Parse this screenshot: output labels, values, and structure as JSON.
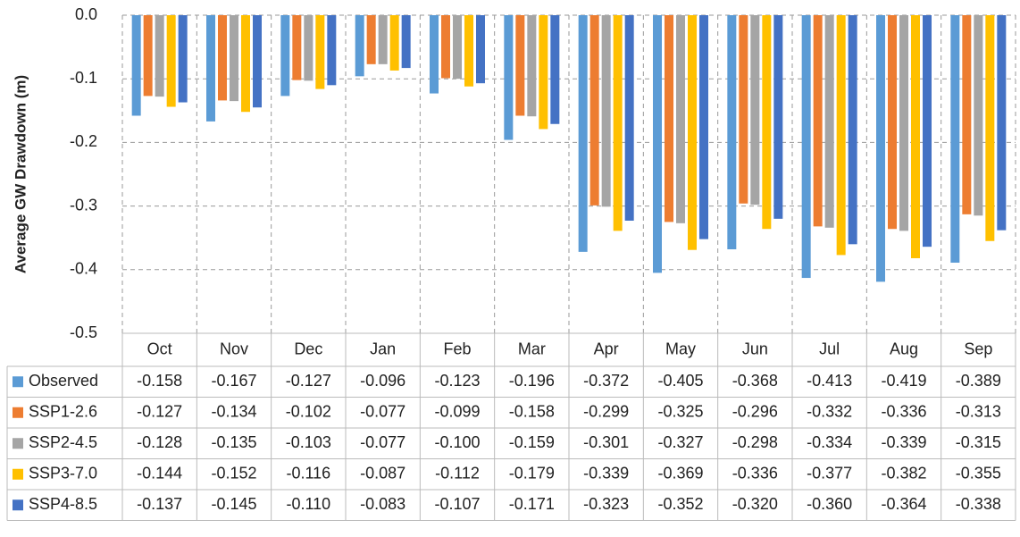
{
  "chart_data": {
    "type": "bar",
    "y_label": "Average GW Drawdown (m)",
    "categories": [
      "Oct",
      "Nov",
      "Dec",
      "Jan",
      "Feb",
      "Mar",
      "Apr",
      "May",
      "Jun",
      "Jul",
      "Aug",
      "Sep"
    ],
    "series": [
      {
        "name": "Observed",
        "color": "#5b9bd5",
        "values": [
          -0.158,
          -0.167,
          -0.127,
          -0.096,
          -0.123,
          -0.196,
          -0.372,
          -0.405,
          -0.368,
          -0.413,
          -0.419,
          -0.389
        ],
        "value_labels": [
          "-0.158",
          "-0.167",
          "-0.127",
          "-0.096",
          "-0.123",
          "-0.196",
          "-0.372",
          "-0.405",
          "-0.368",
          "-0.413",
          "-0.419",
          "-0.389"
        ]
      },
      {
        "name": "SSP1-2.6",
        "color": "#ed7d31",
        "values": [
          -0.127,
          -0.134,
          -0.102,
          -0.077,
          -0.099,
          -0.158,
          -0.299,
          -0.325,
          -0.296,
          -0.332,
          -0.336,
          -0.313
        ],
        "value_labels": [
          "-0.127",
          "-0.134",
          "-0.102",
          "-0.077",
          "-0.099",
          "-0.158",
          "-0.299",
          "-0.325",
          "-0.296",
          "-0.332",
          "-0.336",
          "-0.313"
        ]
      },
      {
        "name": "SSP2-4.5",
        "color": "#a5a5a5",
        "values": [
          -0.128,
          -0.135,
          -0.103,
          -0.077,
          -0.1,
          -0.159,
          -0.301,
          -0.327,
          -0.298,
          -0.334,
          -0.339,
          -0.315
        ],
        "value_labels": [
          "-0.128",
          "-0.135",
          "-0.103",
          "-0.077",
          "-0.100",
          "-0.159",
          "-0.301",
          "-0.327",
          "-0.298",
          "-0.334",
          "-0.339",
          "-0.315"
        ]
      },
      {
        "name": "SSP3-7.0",
        "color": "#ffc000",
        "values": [
          -0.144,
          -0.152,
          -0.116,
          -0.087,
          -0.112,
          -0.179,
          -0.339,
          -0.369,
          -0.336,
          -0.377,
          -0.382,
          -0.355
        ],
        "value_labels": [
          "-0.144",
          "-0.152",
          "-0.116",
          "-0.087",
          "-0.112",
          "-0.179",
          "-0.339",
          "-0.369",
          "-0.336",
          "-0.377",
          "-0.382",
          "-0.355"
        ]
      },
      {
        "name": "SSP4-8.5",
        "color": "#4472c4",
        "values": [
          -0.137,
          -0.145,
          -0.11,
          -0.083,
          -0.107,
          -0.171,
          -0.323,
          -0.352,
          -0.32,
          -0.36,
          -0.364,
          -0.338
        ],
        "value_labels": [
          "-0.137",
          "-0.145",
          "-0.110",
          "-0.083",
          "-0.107",
          "-0.171",
          "-0.323",
          "-0.352",
          "-0.320",
          "-0.360",
          "-0.364",
          "-0.338"
        ]
      }
    ],
    "ylim": [
      -0.5,
      0
    ],
    "yticks": [
      {
        "value": 0,
        "label": "0.0"
      },
      -0.1,
      -0.2,
      -0.3,
      -0.4,
      -0.5
    ],
    "grid": true
  }
}
